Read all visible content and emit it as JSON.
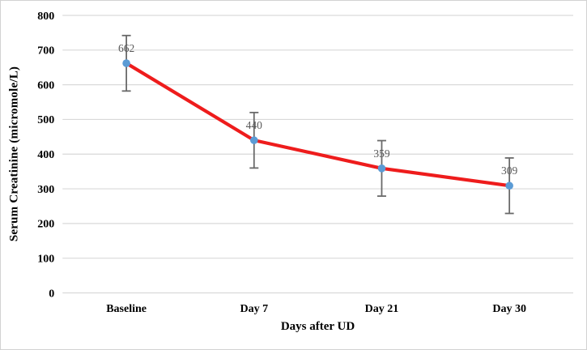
{
  "chart_data": {
    "type": "line",
    "title": "",
    "categories": [
      "Baseline",
      "Day 7",
      "Day 21",
      "Day 30"
    ],
    "series": [
      {
        "name": "Serum Creatinine",
        "values": [
          662,
          440,
          359,
          309
        ],
        "data_labels": [
          "662",
          "440",
          "359",
          "309"
        ],
        "error_bars": {
          "plus": [
            80,
            80,
            80,
            80
          ],
          "minus": [
            80,
            80,
            80,
            80
          ]
        }
      }
    ],
    "xlabel": "Days after UD",
    "ylabel": "Serum Creatinine (micromole/L)",
    "ylim": [
      0,
      800
    ],
    "ytick_step": 100,
    "yticks": [
      "0",
      "100",
      "200",
      "300",
      "400",
      "500",
      "600",
      "700",
      "800"
    ],
    "grid": "horizontal",
    "legend": "none",
    "marker_style": "circle",
    "colors": {
      "line": "#ee1c1c",
      "marker": "#5b9bd5",
      "error_bar": "#6a6a6a",
      "gridline": "#d9d9d9",
      "data_label": "#595959",
      "axis_text": "#000000",
      "figure_border": "#d2d2d2",
      "background": "#ffffff"
    }
  }
}
